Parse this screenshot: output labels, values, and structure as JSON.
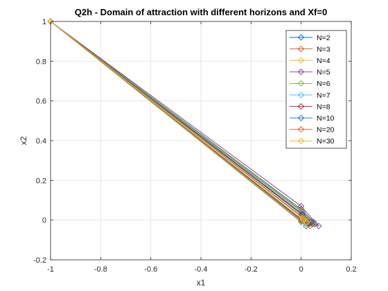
{
  "chart_data": {
    "type": "line",
    "title": "Q2h - Domain of attraction with different horizons and Xf=0",
    "xlabel": "x1",
    "ylabel": "x2",
    "xlim": [
      -1,
      0.2
    ],
    "ylim": [
      -0.2,
      1
    ],
    "xticks": [
      "-1",
      "-0.8",
      "-0.6",
      "-0.4",
      "-0.2",
      "0",
      "0.2"
    ],
    "yticks": [
      "-0.2",
      "0",
      "0.2",
      "0.4",
      "0.6",
      "0.8",
      "1"
    ],
    "grid": true,
    "legend_position": "top-right",
    "marker": "diamond",
    "series": [
      {
        "name": "N=2",
        "color": "#0072BD",
        "points": [
          [
            -1,
            1
          ],
          [
            0.0,
            0.055
          ],
          [
            0.05,
            -0.01
          ],
          [
            0.02,
            -0.03
          ],
          [
            0.0,
            -0.01
          ],
          [
            -1,
            1
          ]
        ]
      },
      {
        "name": "N=3",
        "color": "#D95319",
        "points": [
          [
            -1,
            1
          ],
          [
            0.005,
            0.04
          ],
          [
            0.055,
            -0.02
          ],
          [
            0.035,
            -0.03
          ],
          [
            0.0,
            -0.005
          ],
          [
            -1,
            1
          ]
        ]
      },
      {
        "name": "N=4",
        "color": "#EDB120",
        "points": [
          [
            -1,
            1
          ],
          [
            0.0,
            0.05
          ],
          [
            0.048,
            -0.015
          ],
          [
            0.025,
            -0.025
          ],
          [
            0.0,
            -0.008
          ],
          [
            -1,
            1
          ]
        ]
      },
      {
        "name": "N=5",
        "color": "#7E2F8E",
        "points": [
          [
            -1,
            1
          ],
          [
            0.0,
            0.07
          ],
          [
            0.07,
            -0.03
          ],
          [
            0.045,
            -0.02
          ],
          [
            0.0,
            0.02
          ],
          [
            -1,
            1
          ]
        ]
      },
      {
        "name": "N=6",
        "color": "#77AC30",
        "points": [
          [
            -1,
            1
          ],
          [
            0.002,
            0.045
          ],
          [
            0.052,
            -0.018
          ],
          [
            0.03,
            -0.022
          ],
          [
            0.0,
            0.0
          ],
          [
            -1,
            1
          ]
        ]
      },
      {
        "name": "N=7",
        "color": "#4DBEEE",
        "points": [
          [
            -1,
            1
          ],
          [
            0.003,
            0.035
          ],
          [
            0.045,
            -0.012
          ],
          [
            0.028,
            -0.02
          ],
          [
            0.002,
            -0.002
          ],
          [
            -1,
            1
          ]
        ]
      },
      {
        "name": "N=8",
        "color": "#A2142F",
        "points": [
          [
            -1,
            1
          ],
          [
            0.004,
            0.03
          ],
          [
            0.042,
            -0.01
          ],
          [
            0.03,
            -0.018
          ],
          [
            0.003,
            0.0
          ],
          [
            -1,
            1
          ]
        ]
      },
      {
        "name": "N=10",
        "color": "#0072BD",
        "points": [
          [
            -1,
            1
          ],
          [
            0.005,
            0.025
          ],
          [
            0.04,
            -0.008
          ],
          [
            0.028,
            -0.015
          ],
          [
            0.004,
            0.002
          ],
          [
            -1,
            1
          ]
        ]
      },
      {
        "name": "N=20",
        "color": "#D95319",
        "points": [
          [
            -1,
            1
          ],
          [
            0.006,
            0.015
          ],
          [
            0.032,
            -0.005
          ],
          [
            0.025,
            -0.012
          ],
          [
            0.005,
            0.003
          ],
          [
            -1,
            1
          ]
        ]
      },
      {
        "name": "N=30",
        "color": "#EDB120",
        "points": [
          [
            -1,
            1
          ],
          [
            0.006,
            0.01
          ],
          [
            0.028,
            -0.003
          ],
          [
            0.022,
            -0.01
          ],
          [
            0.006,
            0.002
          ],
          [
            -1,
            1
          ]
        ]
      }
    ]
  }
}
